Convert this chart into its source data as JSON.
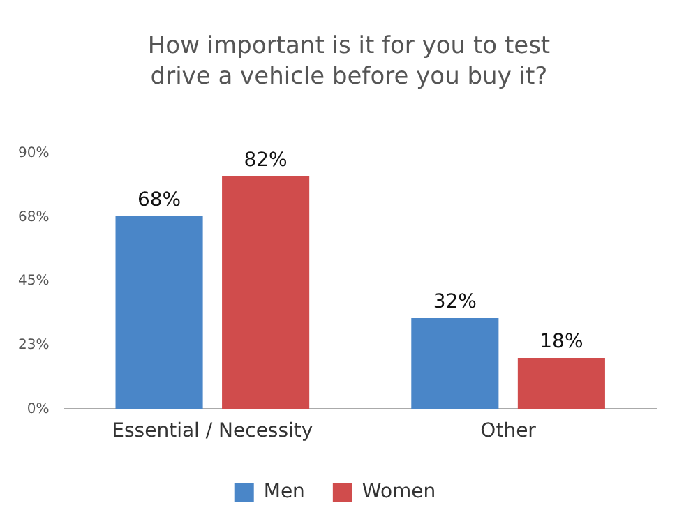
{
  "chart_data": {
    "type": "bar",
    "title": "How important is it for you to test drive a vehicle before you buy it?",
    "categories": [
      "Essential / Necessity",
      "Other"
    ],
    "series": [
      {
        "name": "Men",
        "color": "#4a86c8",
        "values": [
          68,
          32
        ],
        "value_labels": [
          "68%",
          "32%"
        ]
      },
      {
        "name": "Women",
        "color": "#d04c4c",
        "values": [
          82,
          18
        ],
        "value_labels": [
          "82%",
          "18%"
        ]
      }
    ],
    "ylim": [
      0,
      90
    ],
    "yticks": [
      {
        "value": 0,
        "label": "0%"
      },
      {
        "value": 22.5,
        "label": "23%"
      },
      {
        "value": 45,
        "label": "45%"
      },
      {
        "value": 67.5,
        "label": "68%"
      },
      {
        "value": 90,
        "label": "90%"
      }
    ],
    "grid": false,
    "legend": "bottom"
  }
}
